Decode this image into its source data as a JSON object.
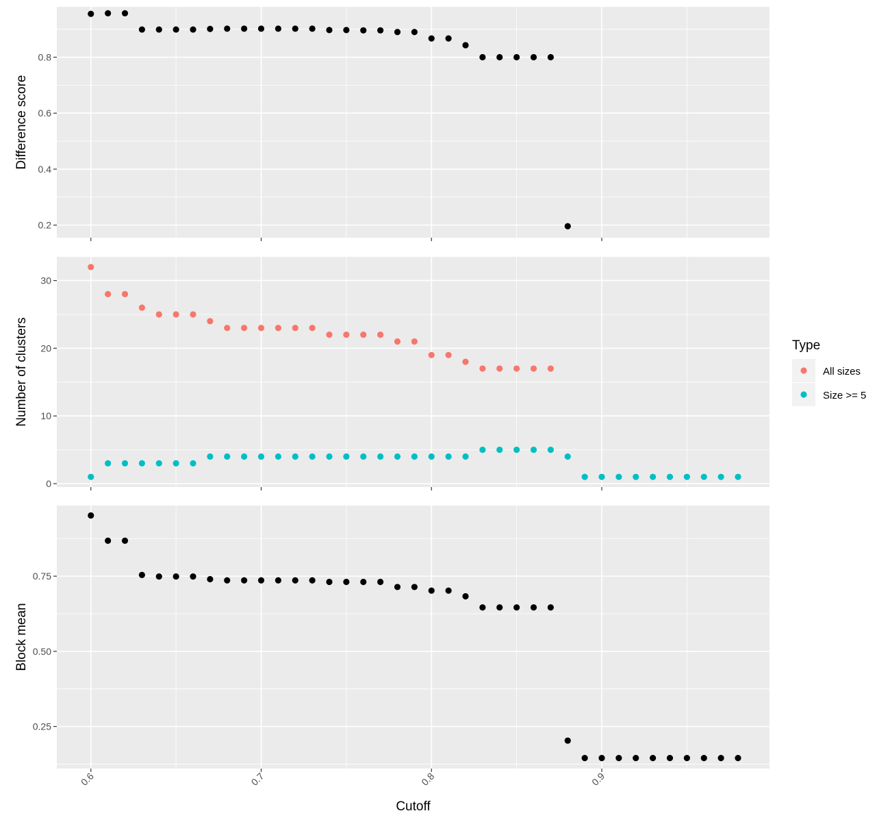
{
  "chart_data": {
    "type": "scatter",
    "xlabel": "Cutoff",
    "x_ticks": [
      0.6,
      0.7,
      0.8,
      0.9
    ],
    "x_tick_labels": [
      "0.6",
      "0.7",
      "0.8",
      "0.9"
    ],
    "xlim": [
      0.58,
      0.9985
    ],
    "grid": true,
    "legend": {
      "title": "Type",
      "placement": "right",
      "entries": [
        {
          "label": "All sizes",
          "color": "#F8766D"
        },
        {
          "label": "Size >= 5",
          "color": "#00BFC4"
        }
      ]
    },
    "panels": [
      {
        "ylabel": "Difference score",
        "ylim": [
          0.155,
          0.98
        ],
        "y_ticks": [
          0.2,
          0.4,
          0.6,
          0.8
        ],
        "y_tick_labels": [
          "0.2",
          "0.4",
          "0.6",
          "0.8"
        ],
        "series": [
          {
            "color": "#000000",
            "x": [
              0.6,
              0.61,
              0.62,
              0.63,
              0.64,
              0.65,
              0.66,
              0.67,
              0.68,
              0.69,
              0.7,
              0.71,
              0.72,
              0.73,
              0.74,
              0.75,
              0.76,
              0.77,
              0.78,
              0.79,
              0.8,
              0.81,
              0.82,
              0.83,
              0.84,
              0.85,
              0.86,
              0.87,
              0.88
            ],
            "y": [
              0.955,
              0.957,
              0.957,
              0.899,
              0.899,
              0.899,
              0.899,
              0.901,
              0.902,
              0.902,
              0.902,
              0.902,
              0.902,
              0.902,
              0.897,
              0.897,
              0.896,
              0.896,
              0.89,
              0.89,
              0.867,
              0.867,
              0.843,
              0.8,
              0.8,
              0.8,
              0.8,
              0.8,
              0.196
            ]
          }
        ]
      },
      {
        "ylabel": "Number of clusters",
        "ylim": [
          -0.5,
          33.5
        ],
        "y_ticks": [
          0,
          10,
          20,
          30
        ],
        "y_tick_labels": [
          "0",
          "10",
          "20",
          "30"
        ],
        "series": [
          {
            "name": "All sizes",
            "color": "#F8766D",
            "x": [
              0.6,
              0.61,
              0.62,
              0.63,
              0.64,
              0.65,
              0.66,
              0.67,
              0.68,
              0.69,
              0.7,
              0.71,
              0.72,
              0.73,
              0.74,
              0.75,
              0.76,
              0.77,
              0.78,
              0.79,
              0.8,
              0.81,
              0.82,
              0.83,
              0.84,
              0.85,
              0.86,
              0.87
            ],
            "y": [
              32,
              28,
              28,
              26,
              25,
              25,
              25,
              24,
              23,
              23,
              23,
              23,
              23,
              23,
              22,
              22,
              22,
              22,
              21,
              21,
              19,
              19,
              18,
              17,
              17,
              17,
              17,
              17
            ]
          },
          {
            "name": "Size >= 5",
            "color": "#00BFC4",
            "x": [
              0.6,
              0.61,
              0.62,
              0.63,
              0.64,
              0.65,
              0.66,
              0.67,
              0.68,
              0.69,
              0.7,
              0.71,
              0.72,
              0.73,
              0.74,
              0.75,
              0.76,
              0.77,
              0.78,
              0.79,
              0.8,
              0.81,
              0.82,
              0.83,
              0.84,
              0.85,
              0.86,
              0.87,
              0.88,
              0.89,
              0.9,
              0.91,
              0.92,
              0.93,
              0.94,
              0.95,
              0.96,
              0.97,
              0.98
            ],
            "y": [
              1,
              3,
              3,
              3,
              3,
              3,
              3,
              4,
              4,
              4,
              4,
              4,
              4,
              4,
              4,
              4,
              4,
              4,
              4,
              4,
              4,
              4,
              4,
              5,
              5,
              5,
              5,
              5,
              4,
              1,
              1,
              1,
              1,
              1,
              1,
              1,
              1,
              1,
              1
            ]
          }
        ]
      },
      {
        "ylabel": "Block mean",
        "ylim": [
          0.11,
          0.985
        ],
        "y_ticks": [
          0.25,
          0.5,
          0.75
        ],
        "y_tick_labels": [
          "0.25",
          "0.50",
          "0.75"
        ],
        "series": [
          {
            "color": "#000000",
            "x": [
              0.6,
              0.61,
              0.62,
              0.63,
              0.64,
              0.65,
              0.66,
              0.67,
              0.68,
              0.69,
              0.7,
              0.71,
              0.72,
              0.73,
              0.74,
              0.75,
              0.76,
              0.77,
              0.78,
              0.79,
              0.8,
              0.81,
              0.82,
              0.83,
              0.84,
              0.85,
              0.86,
              0.87,
              0.88,
              0.89,
              0.9,
              0.91,
              0.92,
              0.93,
              0.94,
              0.95,
              0.96,
              0.97,
              0.98
            ],
            "y": [
              0.952,
              0.868,
              0.868,
              0.754,
              0.749,
              0.749,
              0.749,
              0.74,
              0.736,
              0.736,
              0.736,
              0.736,
              0.736,
              0.736,
              0.731,
              0.731,
              0.731,
              0.731,
              0.714,
              0.714,
              0.702,
              0.702,
              0.683,
              0.646,
              0.646,
              0.646,
              0.646,
              0.646,
              0.203,
              0.145,
              0.145,
              0.145,
              0.145,
              0.145,
              0.145,
              0.145,
              0.145,
              0.145,
              0.145
            ]
          }
        ]
      }
    ]
  }
}
